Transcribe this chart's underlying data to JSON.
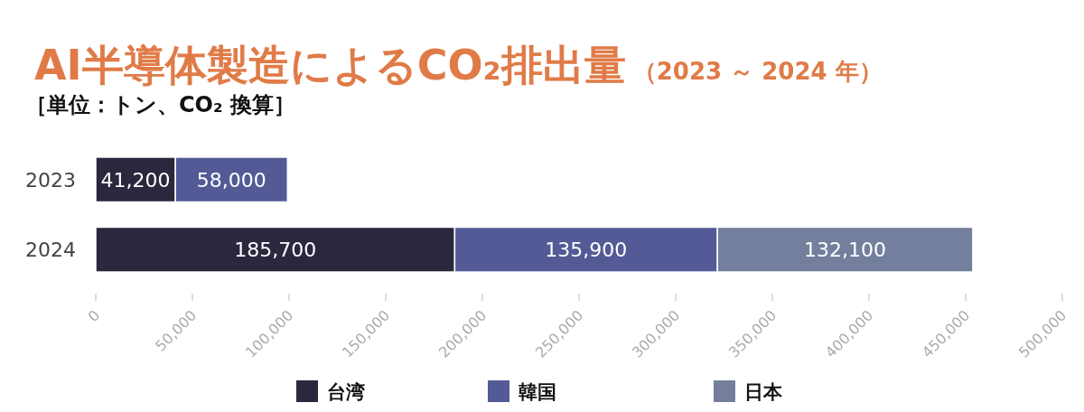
{
  "chart_data": {
    "type": "bar",
    "orientation": "horizontal",
    "stacked": true,
    "title": "AI半導体製造によるCO₂排出量",
    "subtitle": "（2023 ～ 2024 年）",
    "annotations": [
      "［単位：トン、CO₂ 換算］"
    ],
    "categories": [
      "2023",
      "2024"
    ],
    "series": [
      {
        "name": "台湾",
        "color": "#29283f",
        "values": [
          41200,
          185700
        ],
        "value_labels": [
          "41,200",
          "185,700"
        ]
      },
      {
        "name": "韓国",
        "color": "#535a96",
        "values": [
          58000,
          135900
        ],
        "value_labels": [
          "58,000",
          "135,900"
        ]
      },
      {
        "name": "日本",
        "color": "#737f9c",
        "values": [
          null,
          132100
        ],
        "value_labels": [
          null,
          "132,100"
        ]
      }
    ],
    "xlim": [
      0,
      500000
    ],
    "xticks": [
      0,
      {
        "value": 50000,
        "label": "50,000"
      },
      {
        "value": 100000,
        "label": "100,000"
      },
      {
        "value": 150000,
        "label": "150,000"
      },
      {
        "value": 200000,
        "label": "200,000"
      },
      {
        "value": 250000,
        "label": "250,000"
      },
      {
        "value": 300000,
        "label": "300,000"
      },
      {
        "value": 350000,
        "label": "350,000"
      },
      {
        "value": 400000,
        "label": "400,000"
      },
      {
        "value": 450000,
        "label": "450,000"
      },
      {
        "value": 500000,
        "label": "500,000"
      }
    ],
    "legend": "bottom"
  }
}
